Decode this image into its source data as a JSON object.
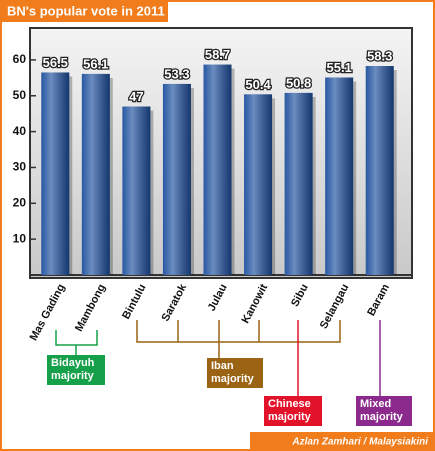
{
  "chart_data": {
    "type": "bar",
    "title": "BN's popular vote in 2011",
    "categories": [
      "Mas Gading",
      "Mambong",
      "Bintulu",
      "Saratok",
      "Julau",
      "Kanowit",
      "Sibu",
      "Selangau",
      "Baram"
    ],
    "values": [
      56.5,
      56.1,
      47,
      53.3,
      58.7,
      50.4,
      50.8,
      55.1,
      58.3
    ],
    "color": "#1d4f9e",
    "ylim": [
      0,
      65
    ],
    "yticks": [
      10,
      20,
      30,
      40,
      50,
      60
    ],
    "grid": false,
    "annotations": [
      {
        "text": "Bidayuh majority",
        "color": "#16a04a"
      },
      {
        "text": "Iban majority",
        "color": "#9a6414"
      },
      {
        "text": "Chinese majority",
        "color": "#e3122b"
      },
      {
        "text": "Mixed majority",
        "color": "#8b2a8c"
      }
    ],
    "credit": "Azlan Zamhari / Malaysiakini"
  }
}
